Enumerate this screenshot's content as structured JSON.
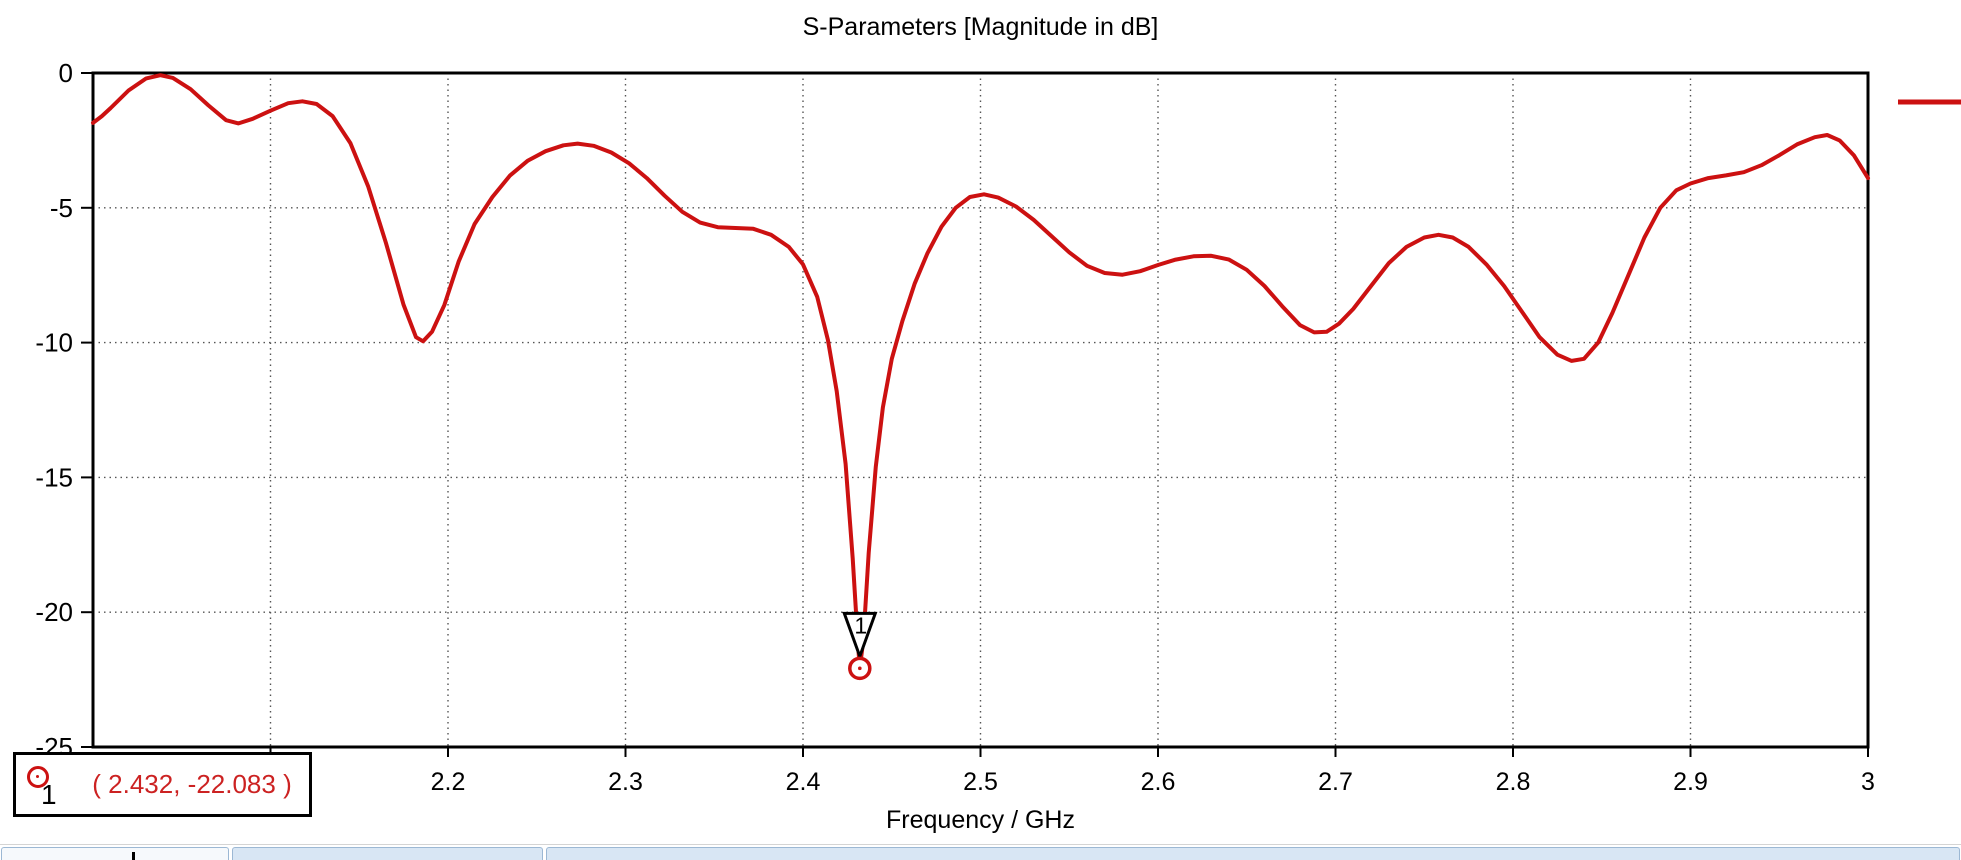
{
  "colors": {
    "curve": "#cc1111",
    "marker_text": "#cc2222",
    "axis": "#000000",
    "grid": "#555555",
    "tab_border": "#9cb8d4"
  },
  "chart_data": {
    "type": "line",
    "title": "S-Parameters [Magnitude in dB]",
    "xlabel": "Frequency / GHz",
    "ylabel": "",
    "xlim": [
      2.0,
      3.0
    ],
    "ylim": [
      -25,
      0
    ],
    "grid": "dotted",
    "x_gridlines": [
      2.1,
      2.2,
      2.3,
      2.4,
      2.5,
      2.6,
      2.7,
      2.8,
      2.9
    ],
    "y_gridlines": [
      -5,
      -10,
      -15,
      -20
    ],
    "x_ticks": [
      2.1,
      2.2,
      2.3,
      2.4,
      2.5,
      2.6,
      2.7,
      2.8,
      2.9,
      3.0
    ],
    "x_tick_labels": [
      {
        "value": 2.2,
        "label": "2.2"
      },
      {
        "value": 2.3,
        "label": "2.3"
      },
      {
        "value": 2.4,
        "label": "2.4"
      },
      {
        "value": 2.5,
        "label": "2.5"
      },
      {
        "value": 2.6,
        "label": "2.6"
      },
      {
        "value": 2.7,
        "label": "2.7"
      },
      {
        "value": 2.8,
        "label": "2.8"
      },
      {
        "value": 2.9,
        "label": "2.9"
      },
      {
        "value": 3.0,
        "label": "3"
      }
    ],
    "y_tick_labels": [
      {
        "value": 0,
        "label": "0"
      },
      {
        "value": -5,
        "label": "-5"
      },
      {
        "value": -10,
        "label": "-10"
      },
      {
        "value": -15,
        "label": "-15"
      },
      {
        "value": -20,
        "label": "-20"
      },
      {
        "value": -25,
        "label": "-25"
      }
    ],
    "legend_position": "right-outside-cut-off",
    "series": [
      {
        "color": "#cc1111",
        "points": [
          [
            2.0,
            -1.85
          ],
          [
            2.005,
            -1.6
          ],
          [
            2.01,
            -1.3
          ],
          [
            2.02,
            -0.65
          ],
          [
            2.03,
            -0.2
          ],
          [
            2.038,
            -0.08
          ],
          [
            2.045,
            -0.18
          ],
          [
            2.055,
            -0.6
          ],
          [
            2.065,
            -1.2
          ],
          [
            2.075,
            -1.75
          ],
          [
            2.082,
            -1.87
          ],
          [
            2.09,
            -1.7
          ],
          [
            2.1,
            -1.4
          ],
          [
            2.11,
            -1.12
          ],
          [
            2.118,
            -1.05
          ],
          [
            2.126,
            -1.15
          ],
          [
            2.135,
            -1.6
          ],
          [
            2.145,
            -2.6
          ],
          [
            2.155,
            -4.2
          ],
          [
            2.165,
            -6.3
          ],
          [
            2.175,
            -8.6
          ],
          [
            2.182,
            -9.8
          ],
          [
            2.186,
            -9.95
          ],
          [
            2.191,
            -9.6
          ],
          [
            2.198,
            -8.6
          ],
          [
            2.206,
            -7.0
          ],
          [
            2.215,
            -5.6
          ],
          [
            2.225,
            -4.6
          ],
          [
            2.235,
            -3.8
          ],
          [
            2.245,
            -3.25
          ],
          [
            2.255,
            -2.9
          ],
          [
            2.265,
            -2.68
          ],
          [
            2.273,
            -2.62
          ],
          [
            2.282,
            -2.7
          ],
          [
            2.292,
            -2.95
          ],
          [
            2.302,
            -3.35
          ],
          [
            2.312,
            -3.9
          ],
          [
            2.322,
            -4.55
          ],
          [
            2.332,
            -5.15
          ],
          [
            2.342,
            -5.55
          ],
          [
            2.352,
            -5.72
          ],
          [
            2.362,
            -5.75
          ],
          [
            2.372,
            -5.78
          ],
          [
            2.382,
            -6.0
          ],
          [
            2.392,
            -6.45
          ],
          [
            2.4,
            -7.1
          ],
          [
            2.408,
            -8.3
          ],
          [
            2.414,
            -9.9
          ],
          [
            2.419,
            -11.8
          ],
          [
            2.424,
            -14.5
          ],
          [
            2.428,
            -18.0
          ],
          [
            2.431,
            -21.2
          ],
          [
            2.432,
            -22.083
          ],
          [
            2.434,
            -21.0
          ],
          [
            2.437,
            -17.8
          ],
          [
            2.441,
            -14.6
          ],
          [
            2.445,
            -12.4
          ],
          [
            2.45,
            -10.6
          ],
          [
            2.456,
            -9.2
          ],
          [
            2.463,
            -7.8
          ],
          [
            2.47,
            -6.7
          ],
          [
            2.478,
            -5.7
          ],
          [
            2.486,
            -5.0
          ],
          [
            2.494,
            -4.6
          ],
          [
            2.502,
            -4.5
          ],
          [
            2.51,
            -4.62
          ],
          [
            2.52,
            -4.95
          ],
          [
            2.53,
            -5.45
          ],
          [
            2.54,
            -6.05
          ],
          [
            2.55,
            -6.65
          ],
          [
            2.56,
            -7.15
          ],
          [
            2.57,
            -7.42
          ],
          [
            2.58,
            -7.48
          ],
          [
            2.59,
            -7.35
          ],
          [
            2.6,
            -7.12
          ],
          [
            2.61,
            -6.92
          ],
          [
            2.62,
            -6.8
          ],
          [
            2.63,
            -6.78
          ],
          [
            2.64,
            -6.92
          ],
          [
            2.65,
            -7.3
          ],
          [
            2.66,
            -7.9
          ],
          [
            2.67,
            -8.65
          ],
          [
            2.68,
            -9.35
          ],
          [
            2.688,
            -9.62
          ],
          [
            2.695,
            -9.6
          ],
          [
            2.702,
            -9.3
          ],
          [
            2.71,
            -8.75
          ],
          [
            2.72,
            -7.9
          ],
          [
            2.73,
            -7.05
          ],
          [
            2.74,
            -6.45
          ],
          [
            2.75,
            -6.1
          ],
          [
            2.758,
            -6.0
          ],
          [
            2.766,
            -6.1
          ],
          [
            2.775,
            -6.45
          ],
          [
            2.785,
            -7.1
          ],
          [
            2.795,
            -7.9
          ],
          [
            2.805,
            -8.85
          ],
          [
            2.815,
            -9.8
          ],
          [
            2.825,
            -10.45
          ],
          [
            2.833,
            -10.68
          ],
          [
            2.84,
            -10.6
          ],
          [
            2.848,
            -10.0
          ],
          [
            2.856,
            -8.9
          ],
          [
            2.865,
            -7.5
          ],
          [
            2.874,
            -6.1
          ],
          [
            2.883,
            -5.0
          ],
          [
            2.892,
            -4.35
          ],
          [
            2.9,
            -4.1
          ],
          [
            2.91,
            -3.9
          ],
          [
            2.92,
            -3.8
          ],
          [
            2.93,
            -3.68
          ],
          [
            2.94,
            -3.42
          ],
          [
            2.95,
            -3.05
          ],
          [
            2.96,
            -2.65
          ],
          [
            2.97,
            -2.38
          ],
          [
            2.977,
            -2.3
          ],
          [
            2.984,
            -2.5
          ],
          [
            2.992,
            -3.05
          ],
          [
            3.0,
            -3.9
          ]
        ]
      }
    ],
    "marker": {
      "id": "1",
      "x": 2.432,
      "y": -22.083,
      "readout": "( 2.432, -22.083 )"
    }
  }
}
